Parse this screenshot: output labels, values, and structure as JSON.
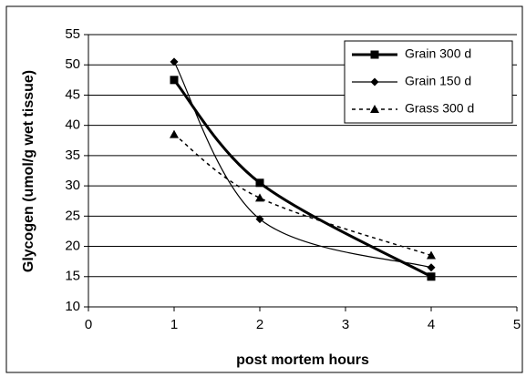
{
  "chart_data": {
    "type": "line",
    "y_label": "Glycogen (umol/g wet tissue)",
    "x_label": "post mortem hours",
    "xlim": [
      0,
      5
    ],
    "xticks": [
      0,
      1,
      2,
      3,
      4,
      5
    ],
    "ylim": [
      10,
      55
    ],
    "yticks": [
      10,
      15,
      20,
      25,
      30,
      35,
      40,
      45,
      50,
      55
    ],
    "grid": true,
    "legend": "top-right",
    "series": [
      {
        "name": "Grain 300 d",
        "color": "#000000",
        "marker": "square",
        "line_style": "solid",
        "line_width": 3,
        "x": [
          1,
          2,
          4
        ],
        "values": [
          47.5,
          30.5,
          15
        ]
      },
      {
        "name": "Grain 150 d",
        "color": "#000000",
        "marker": "diamond",
        "line_style": "solid",
        "line_width": 1.2,
        "x": [
          1,
          2,
          4
        ],
        "values": [
          50.5,
          24.5,
          16.5
        ]
      },
      {
        "name": "Grass 300 d",
        "color": "#000000",
        "marker": "triangle",
        "line_style": "dashed",
        "line_width": 1.5,
        "x": [
          1,
          2,
          4
        ],
        "values": [
          38.5,
          28,
          18.5
        ]
      }
    ]
  }
}
